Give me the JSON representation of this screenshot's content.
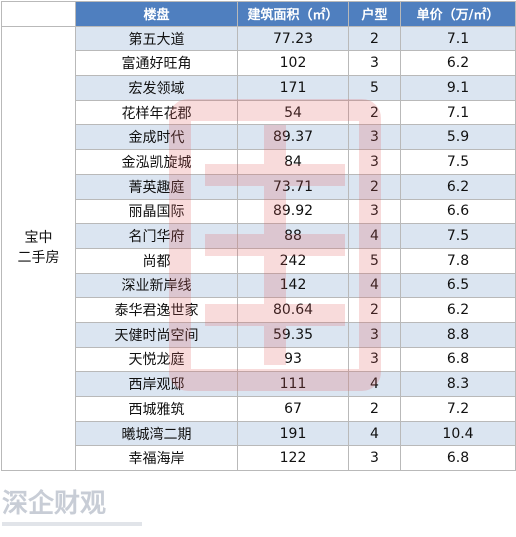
{
  "colors": {
    "header_bg": "#4f7fbf",
    "row_odd": "#dbe5f1",
    "row_even": "#ffffff",
    "watermark": "#e05a5a"
  },
  "table": {
    "group_label": "宝中\n二手房",
    "headers": [
      "楼盘",
      "建筑面积（㎡）",
      "户型",
      "单价（万/㎡）"
    ],
    "rows": [
      [
        "第五大道",
        "77.23",
        "2",
        "7.1"
      ],
      [
        "富通好旺角",
        "102",
        "3",
        "6.2"
      ],
      [
        "宏发领域",
        "171",
        "5",
        "9.1"
      ],
      [
        "花样年花郡",
        "54",
        "2",
        "7.1"
      ],
      [
        "金成时代",
        "89.37",
        "3",
        "5.9"
      ],
      [
        "金泓凯旋城",
        "84",
        "3",
        "7.5"
      ],
      [
        "菁英趣庭",
        "73.71",
        "2",
        "6.2"
      ],
      [
        "丽晶国际",
        "89.92",
        "3",
        "6.6"
      ],
      [
        "名门华府",
        "88",
        "4",
        "7.5"
      ],
      [
        "尚都",
        "242",
        "5",
        "7.8"
      ],
      [
        "深业新岸线",
        "142",
        "4",
        "6.5"
      ],
      [
        "泰华君逸世家",
        "80.64",
        "2",
        "6.2"
      ],
      [
        "天健时尚空间",
        "59.35",
        "3",
        "8.8"
      ],
      [
        "天悦龙庭",
        "93",
        "3",
        "6.8"
      ],
      [
        "西岸观邸",
        "111",
        "4",
        "8.3"
      ],
      [
        "西城雅筑",
        "67",
        "2",
        "7.2"
      ],
      [
        "曦城湾二期",
        "191",
        "4",
        "10.4"
      ],
      [
        "幸福海岸",
        "122",
        "3",
        "6.8"
      ]
    ]
  },
  "watermark_text": "深企财观"
}
